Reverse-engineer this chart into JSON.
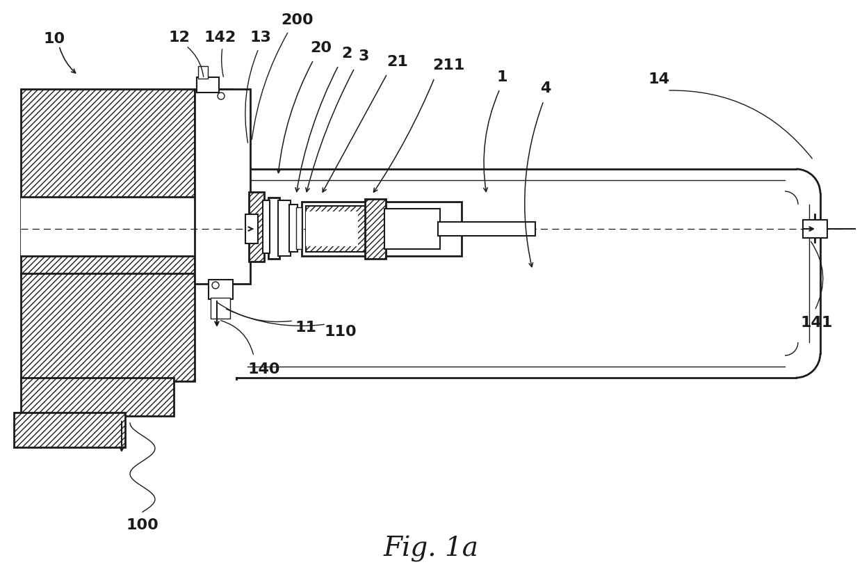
{
  "background": "#ffffff",
  "lc": "#1a1a1a",
  "fig_label": "Fig. 1a",
  "lw_thick": 2.0,
  "lw_med": 1.5,
  "lw_thin": 1.0
}
